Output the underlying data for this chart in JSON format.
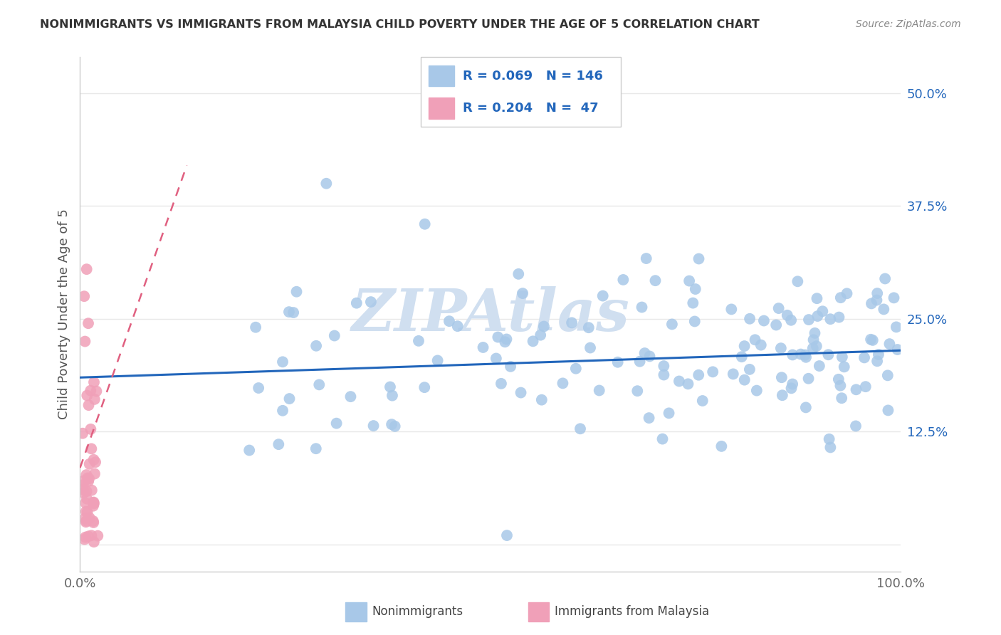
{
  "title": "NONIMMIGRANTS VS IMMIGRANTS FROM MALAYSIA CHILD POVERTY UNDER THE AGE OF 5 CORRELATION CHART",
  "source": "Source: ZipAtlas.com",
  "ylabel": "Child Poverty Under the Age of 5",
  "xlim": [
    0,
    1.0
  ],
  "ylim": [
    -0.03,
    0.54
  ],
  "yticks": [
    0.0,
    0.125,
    0.25,
    0.375,
    0.5
  ],
  "ytick_labels": [
    "",
    "12.5%",
    "25.0%",
    "37.5%",
    "50.0%"
  ],
  "xticks": [
    0.0,
    1.0
  ],
  "xtick_labels": [
    "0.0%",
    "100.0%"
  ],
  "nonimm_R": 0.069,
  "nonimm_N": 146,
  "imm_R": 0.204,
  "imm_N": 47,
  "nonimm_color": "#a8c8e8",
  "imm_color": "#f0a0b8",
  "nonimm_line_color": "#2266bb",
  "imm_line_color": "#e06080",
  "watermark": "ZIPAtlas",
  "watermark_color": "#d0dff0",
  "background_color": "#ffffff",
  "grid_color": "#e8e8e8",
  "title_color": "#333333",
  "source_color": "#888888",
  "tick_color_y": "#2266bb",
  "tick_color_x": "#666666",
  "legend_label_nonimm": "Nonimmigrants",
  "legend_label_imm": "Immigrants from Malaysia"
}
